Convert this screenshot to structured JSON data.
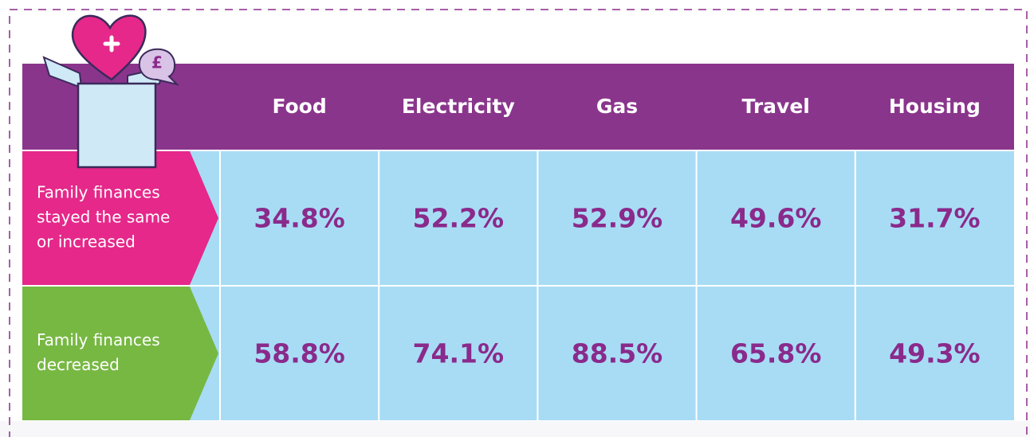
{
  "icon": {
    "symbol": "£"
  },
  "table": {
    "columns": [
      "Food",
      "Electricity",
      "Gas",
      "Travel",
      "Housing"
    ],
    "rows": [
      {
        "label_lines": [
          "Family finances",
          "stayed the same",
          "or increased"
        ],
        "color": "#e5288a",
        "cells": [
          "34.8%",
          "52.2%",
          "52.9%",
          "49.6%",
          "31.7%"
        ]
      },
      {
        "label_lines": [
          "Family finances",
          "decreased"
        ],
        "color": "#77b843",
        "cells": [
          "58.8%",
          "74.1%",
          "88.5%",
          "65.8%",
          "49.3%"
        ]
      }
    ]
  }
}
